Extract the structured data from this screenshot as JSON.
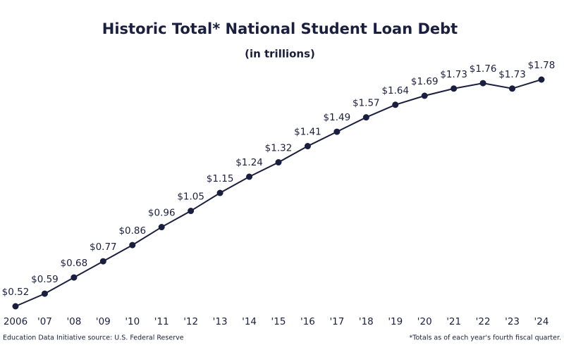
{
  "chart_data": {
    "type": "line",
    "title": "Historic Total* National Student Loan Debt",
    "subtitle": "(in trillions)",
    "categories": [
      "2006",
      "'07",
      "'08",
      "'09",
      "'10",
      "'11",
      "'12",
      "'13",
      "'14",
      "'15",
      "'16",
      "'17",
      "'18",
      "'19",
      "'20",
      "'21",
      "'22",
      "'23",
      "'24"
    ],
    "values": [
      0.52,
      0.59,
      0.68,
      0.77,
      0.86,
      0.96,
      1.05,
      1.15,
      1.24,
      1.32,
      1.41,
      1.49,
      1.57,
      1.64,
      1.69,
      1.73,
      1.76,
      1.73,
      1.78
    ],
    "value_labels": [
      "$0.52",
      "$0.59",
      "$0.68",
      "$0.77",
      "$0.86",
      "$0.96",
      "$1.05",
      "$1.15",
      "$1.24",
      "$1.32",
      "$1.41",
      "$1.49",
      "$1.57",
      "$1.64",
      "$1.69",
      "$1.73",
      "$1.76",
      "$1.73",
      "$1.78"
    ],
    "color": "#1b1f3f",
    "source": "Education Data Initiative source: U.S. Federal Reserve",
    "footnote": "*Totals as of each year's fourth fiscal quarter."
  }
}
